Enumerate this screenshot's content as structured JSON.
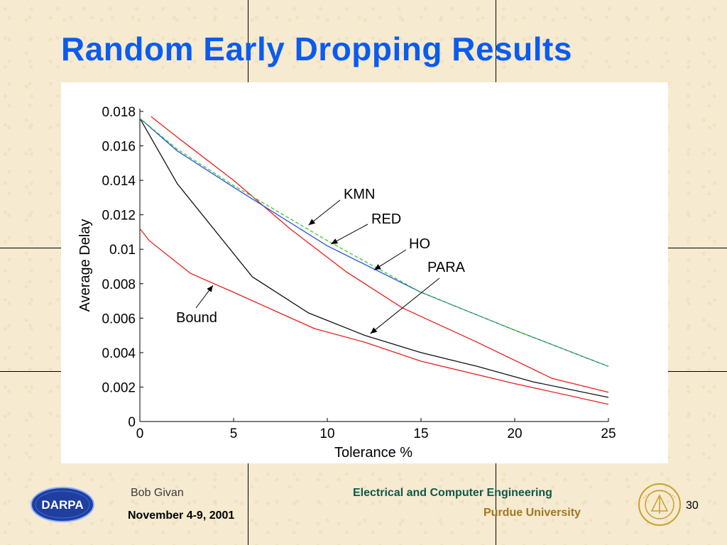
{
  "slide": {
    "title": "Random Early Dropping Results",
    "page_number": "30"
  },
  "footer": {
    "author": "Bob Givan",
    "date": "November 4-9, 2001",
    "department": "Electrical and Computer Engineering",
    "university": "Purdue University",
    "logo_text": "DARPA",
    "colors": {
      "author": "#3a3a3a",
      "department": "#0b5a4a",
      "university": "#a0781e",
      "date": "#000000"
    }
  },
  "chart_data": {
    "type": "line",
    "xlabel": "Tolerance %",
    "ylabel": "Average Delay",
    "xlim": [
      0,
      25
    ],
    "ylim": [
      0,
      0.018
    ],
    "xticks": [
      "0",
      "5",
      "10",
      "15",
      "20",
      "25"
    ],
    "yticks": [
      "0",
      "0.002",
      "0.004",
      "0.006",
      "0.008",
      "0.01",
      "0.012",
      "0.014",
      "0.016",
      "0.018"
    ],
    "series": [
      {
        "name": "KMN",
        "color": "#2f4fe0",
        "x": [
          0,
          2,
          5,
          10,
          15,
          20,
          25
        ],
        "y": [
          0.0176,
          0.0157,
          0.0136,
          0.0102,
          0.0075,
          0.0053,
          0.0032
        ]
      },
      {
        "name": "RED",
        "color": "#33cc33",
        "x": [
          0,
          2,
          5,
          10,
          15,
          20,
          25
        ],
        "y": [
          0.0176,
          0.0158,
          0.0137,
          0.0105,
          0.0075,
          0.0053,
          0.0032
        ]
      },
      {
        "name": "HO",
        "color": "#e81e1e",
        "x": [
          0.6,
          2,
          5,
          8,
          11,
          14,
          18,
          22,
          25
        ],
        "y": [
          0.0177,
          0.0165,
          0.014,
          0.0112,
          0.0087,
          0.0066,
          0.0046,
          0.0025,
          0.0017
        ]
      },
      {
        "name": "PARA",
        "color": "#111111",
        "x": [
          0,
          2,
          6,
          9,
          12,
          15,
          18,
          21,
          25
        ],
        "y": [
          0.0176,
          0.0138,
          0.0084,
          0.0063,
          0.005,
          0.004,
          0.0032,
          0.0023,
          0.0014
        ]
      },
      {
        "name": "Bound",
        "color": "#e81e1e",
        "x": [
          0,
          0.5,
          2.7,
          5,
          9.3,
          12,
          15,
          20,
          25
        ],
        "y": [
          0.0112,
          0.0105,
          0.0086,
          0.0075,
          0.0054,
          0.0046,
          0.0035,
          0.0022,
          0.001
        ]
      }
    ],
    "annotations": [
      {
        "text": "KMN",
        "series": "KMN",
        "arrow_to": [
          9.0,
          0.0114
        ]
      },
      {
        "text": "RED",
        "series": "RED",
        "arrow_to": [
          10.2,
          0.0103
        ]
      },
      {
        "text": "HO",
        "series": "HO",
        "arrow_to": [
          12.5,
          0.0088
        ]
      },
      {
        "text": "PARA",
        "series": "PARA",
        "arrow_to": [
          12.3,
          0.0051
        ]
      },
      {
        "text": "Bound",
        "series": "Bound",
        "arrow_to": [
          3.9,
          0.0079
        ]
      }
    ],
    "grid": false,
    "legend": "none"
  }
}
